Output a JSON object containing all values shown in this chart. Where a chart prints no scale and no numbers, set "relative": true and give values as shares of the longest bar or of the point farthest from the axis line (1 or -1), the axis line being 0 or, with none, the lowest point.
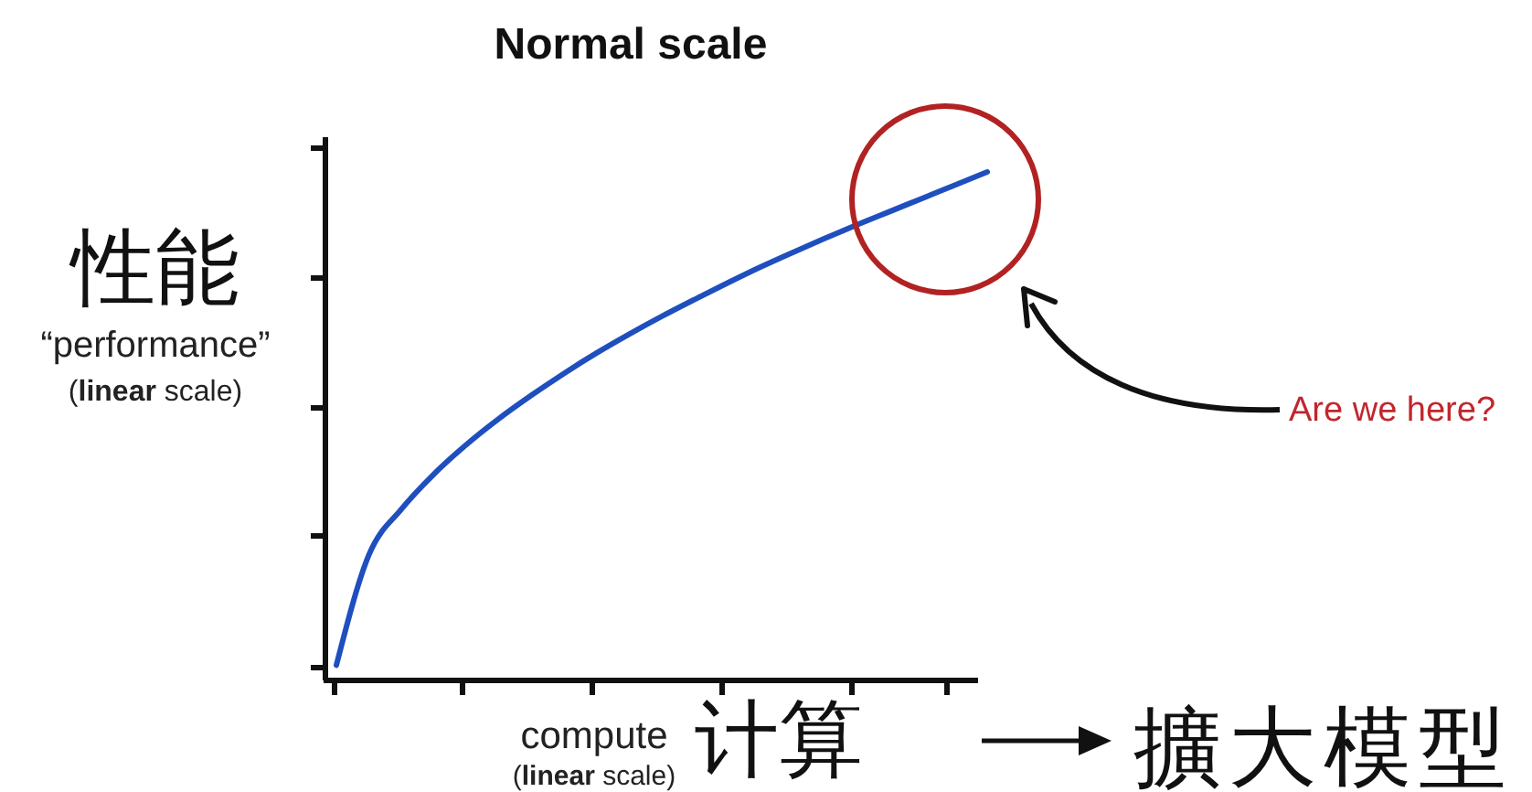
{
  "chart_data": {
    "type": "line",
    "relative": true,
    "title": "Normal scale",
    "xlabel": "compute\n(linear scale)\n计算",
    "ylabel": "性能\n“performance”\n(linear scale)",
    "categories": [
      null,
      null,
      null,
      null,
      null,
      null,
      null,
      null,
      null,
      null,
      null,
      null,
      null,
      null,
      null,
      null,
      null,
      null,
      null,
      null,
      null
    ],
    "series": [
      {
        "color": "#1f4fbf",
        "values": [
          0.03,
          0.247,
          0.337,
          0.406,
          0.464,
          0.515,
          0.561,
          0.604,
          0.644,
          0.681,
          0.716,
          0.749,
          0.781,
          0.812,
          0.841,
          0.869,
          0.896,
          0.922,
          0.948,
          0.974,
          1.0
        ]
      }
    ],
    "annotations": [
      "Are we here?",
      "擴大模型"
    ],
    "grid": false,
    "marker": "none",
    "line_style": "solid"
  }
}
